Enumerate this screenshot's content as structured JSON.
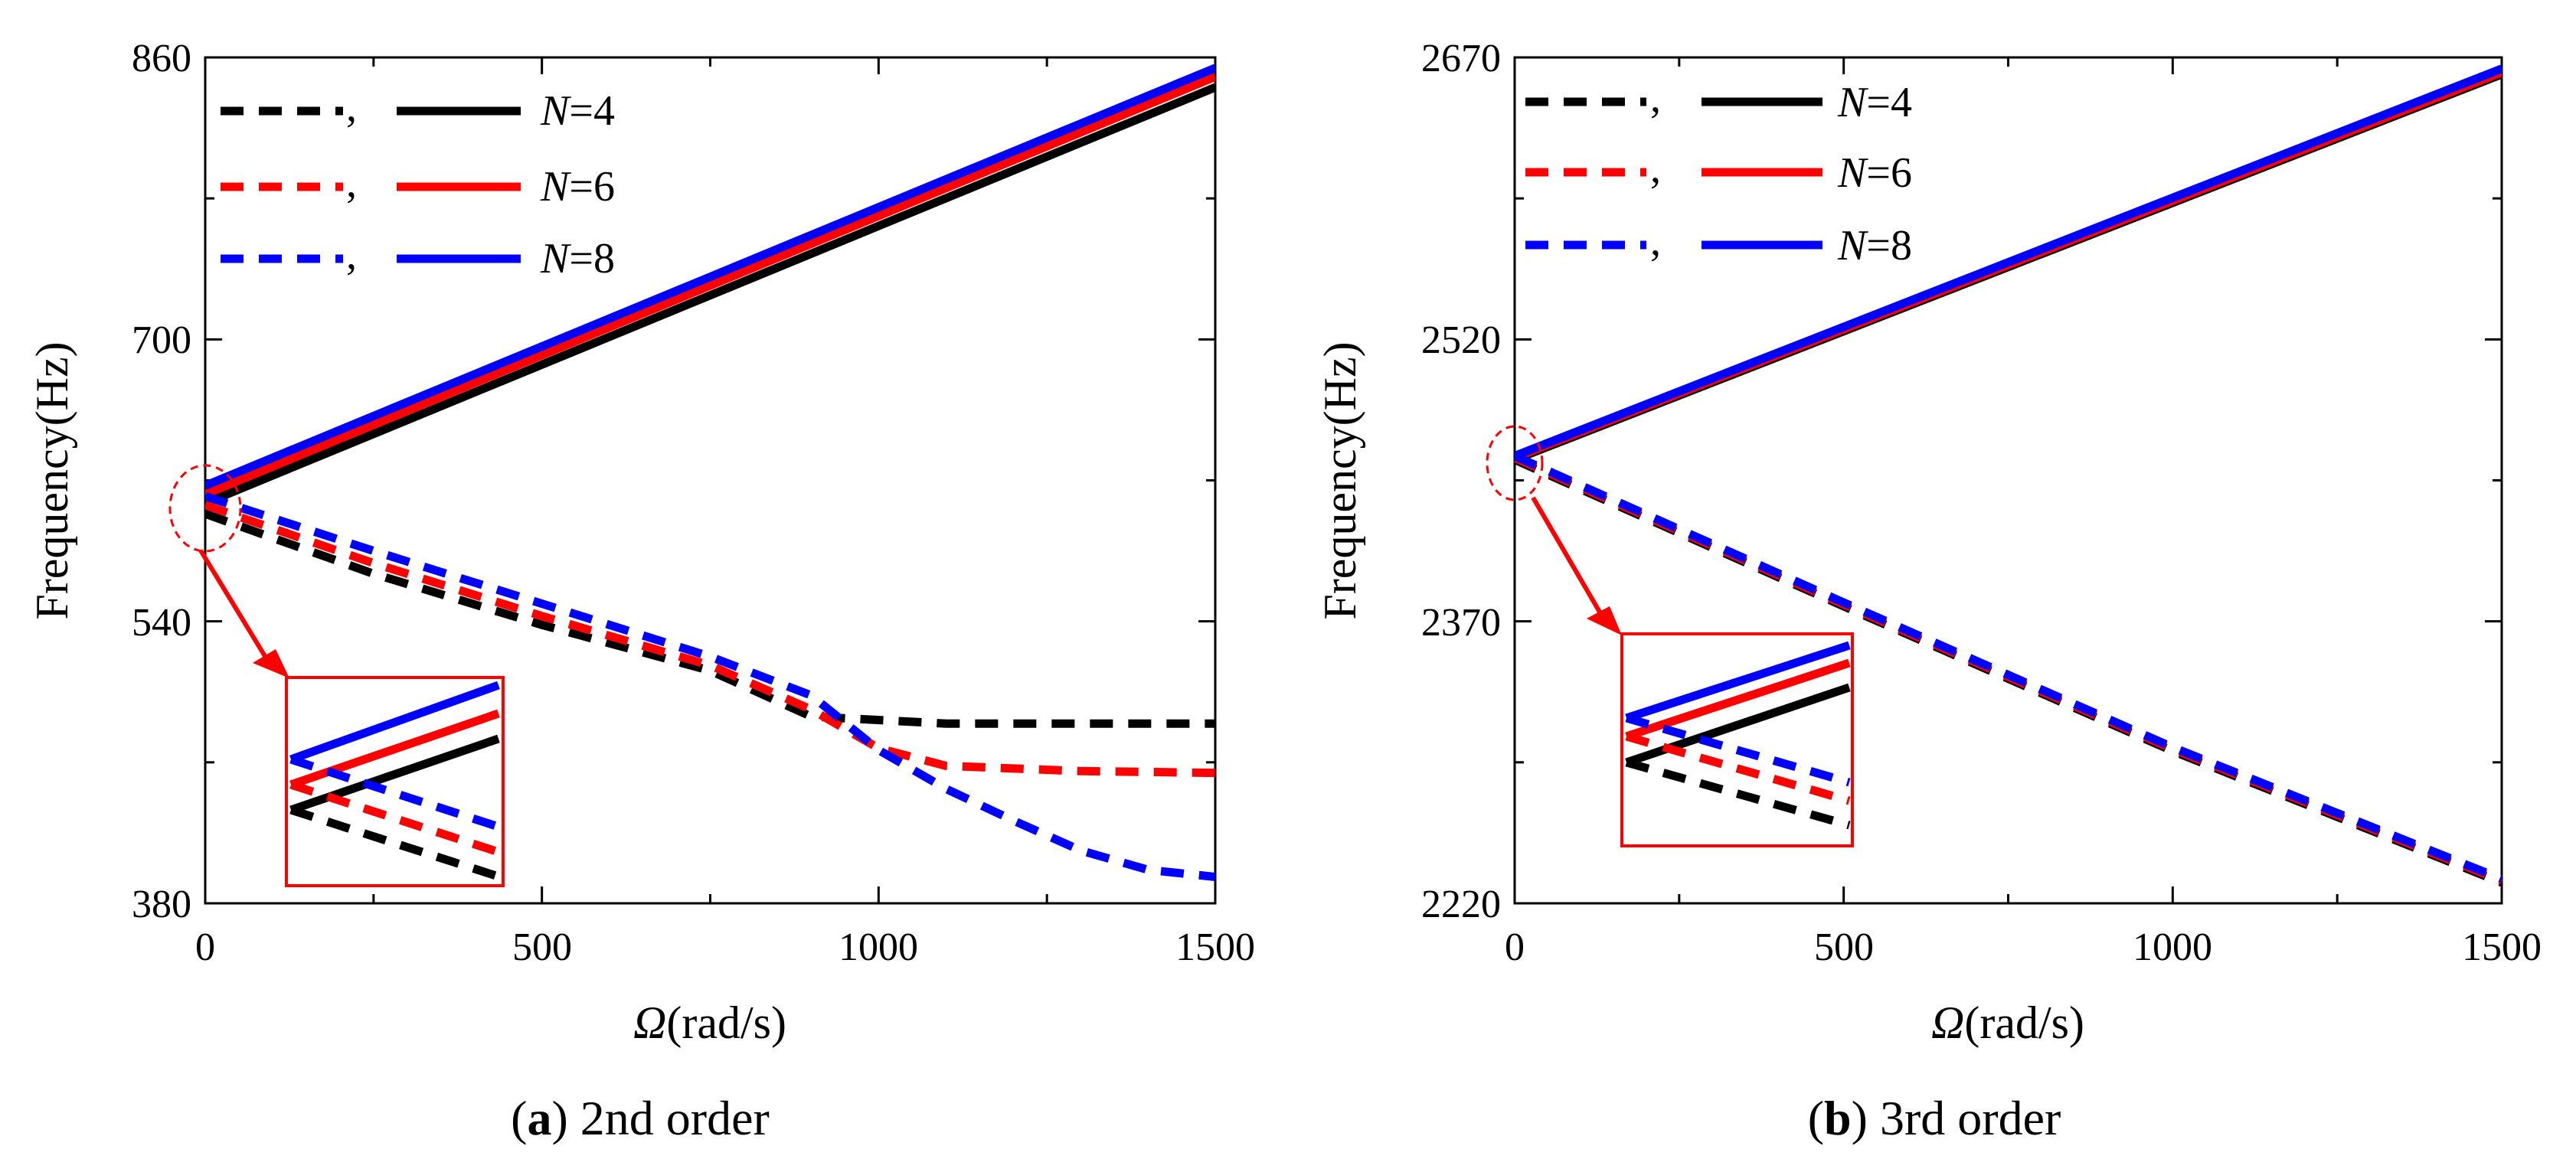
{
  "chart_data": [
    {
      "type": "line",
      "panel_letter": "a",
      "caption_rest": " 2nd order",
      "ylabel": "Frequency(Hz)",
      "xlabel_symbol": "Ω",
      "xlabel_unit": "(rad/s)",
      "xlim": [
        0,
        1500
      ],
      "ylim": [
        380,
        860
      ],
      "xticks": [
        "0",
        "500",
        "1000",
        "1500"
      ],
      "yticks": [
        "380",
        "540",
        "700",
        "860"
      ],
      "xtick_values": [
        0,
        500,
        1000,
        1500
      ],
      "ytick_values": [
        380,
        540,
        700,
        860
      ],
      "legend": [
        {
          "label_var": "N",
          "label_rest": "=4",
          "color": "#000000"
        },
        {
          "label_var": "N",
          "label_rest": "=6",
          "color": "#ff0000"
        },
        {
          "label_var": "N",
          "label_rest": "=8",
          "color": "#0000ff"
        }
      ],
      "series": [
        {
          "name": "N=4 backward",
          "style": "dashed",
          "color": "#000000",
          "x": [
            0,
            250,
            500,
            750,
            900,
            1100,
            1300,
            1500
          ],
          "y": [
            601,
            567,
            538,
            512,
            486,
            482,
            482,
            482
          ]
        },
        {
          "name": "N=4 forward",
          "style": "solid",
          "color": "#000000",
          "x": [
            0,
            1500
          ],
          "y": [
            607,
            843
          ]
        },
        {
          "name": "N=6 backward",
          "style": "dashed",
          "color": "#ff0000",
          "x": [
            0,
            250,
            500,
            750,
            900,
            1000,
            1100,
            1300,
            1500
          ],
          "y": [
            606,
            573,
            543,
            515,
            490,
            468,
            458,
            455,
            454
          ]
        },
        {
          "name": "N=6 forward",
          "style": "solid",
          "color": "#ff0000",
          "x": [
            0,
            1500
          ],
          "y": [
            612,
            849
          ]
        },
        {
          "name": "N=8 backward",
          "style": "dashed",
          "color": "#0000ff",
          "x": [
            0,
            250,
            500,
            750,
            900,
            1000,
            1100,
            1200,
            1300,
            1400,
            1500
          ],
          "y": [
            611,
            580,
            550,
            520,
            498,
            467,
            445,
            427,
            410,
            399,
            395
          ]
        },
        {
          "name": "N=8 forward",
          "style": "solid",
          "color": "#0000ff",
          "x": [
            0,
            1500
          ],
          "y": [
            617,
            854
          ]
        }
      ]
    },
    {
      "type": "line",
      "panel_letter": "b",
      "caption_rest": " 3rd order",
      "ylabel": "Frequency(Hz)",
      "xlabel_symbol": "Ω",
      "xlabel_unit": "(rad/s)",
      "xlim": [
        0,
        1500
      ],
      "ylim": [
        2220,
        2670
      ],
      "xticks": [
        "0",
        "500",
        "1000",
        "1500"
      ],
      "yticks": [
        "2220",
        "2370",
        "2520",
        "2670"
      ],
      "xtick_values": [
        0,
        500,
        1000,
        1500
      ],
      "ytick_values": [
        2220,
        2370,
        2520,
        2670
      ],
      "legend": [
        {
          "label_var": "N",
          "label_rest": "=4",
          "color": "#000000"
        },
        {
          "label_var": "N",
          "label_rest": "=6",
          "color": "#ff0000"
        },
        {
          "label_var": "N",
          "label_rest": "=8",
          "color": "#0000ff"
        }
      ],
      "series": [
        {
          "name": "N=4 backward",
          "style": "dashed",
          "color": "#000000",
          "x": [
            0,
            500,
            1000,
            1500
          ],
          "y": [
            2456,
            2378,
            2301,
            2231
          ]
        },
        {
          "name": "N=4 forward",
          "style": "solid",
          "color": "#000000",
          "x": [
            0,
            1500
          ],
          "y": [
            2456,
            2661
          ]
        },
        {
          "name": "N=6 backward",
          "style": "dashed",
          "color": "#ff0000",
          "x": [
            0,
            500,
            1000,
            1500
          ],
          "y": [
            2457,
            2379,
            2302,
            2232
          ]
        },
        {
          "name": "N=6 forward",
          "style": "solid",
          "color": "#ff0000",
          "x": [
            0,
            1500
          ],
          "y": [
            2457,
            2662
          ]
        },
        {
          "name": "N=8 backward",
          "style": "dashed",
          "color": "#0000ff",
          "x": [
            0,
            500,
            1000,
            1500
          ],
          "y": [
            2458,
            2380,
            2303,
            2233
          ]
        },
        {
          "name": "N=8 forward",
          "style": "solid",
          "color": "#0000ff",
          "x": [
            0,
            1500
          ],
          "y": [
            2458,
            2664
          ]
        }
      ]
    }
  ]
}
